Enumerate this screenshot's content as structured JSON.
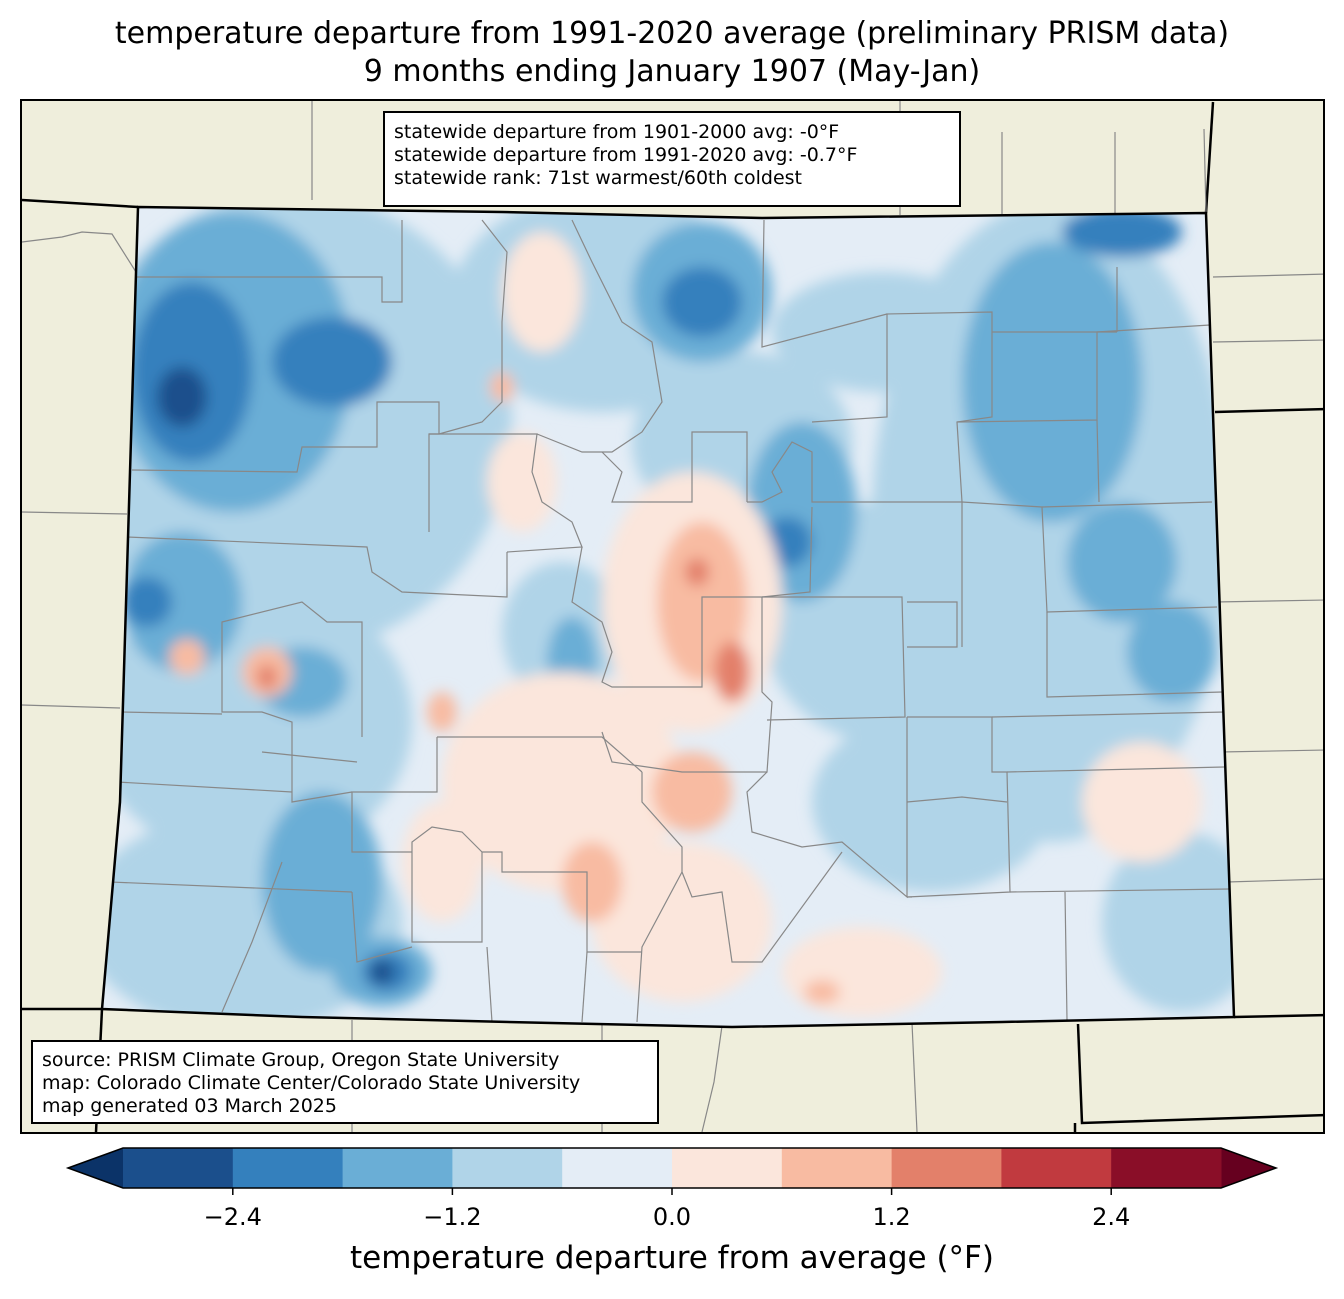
{
  "title": {
    "line1": "temperature departure from 1991-2020 average (preliminary PRISM data)",
    "line2": "9 months ending January 1907 (May-Jan)"
  },
  "stats": {
    "line1": "statewide departure from 1901-2000 avg: -0°F",
    "line2": "statewide departure from 1991-2020 avg: -0.7°F",
    "line3": "statewide rank: 71st warmest/60th coldest"
  },
  "source": {
    "line1": "source: PRISM Climate Group, Oregon State University",
    "line2": "map: Colorado Climate Center/Colorado State University",
    "line3": "map generated 03 March 2025"
  },
  "colorbar": {
    "label": "temperature departure from average (°F)",
    "ticks": [
      "−2.4",
      "−1.2",
      "0.0",
      "1.2",
      "2.4"
    ],
    "tick_values": [
      -2.4,
      -1.2,
      0.0,
      1.2,
      2.4
    ],
    "range": [
      -3.0,
      3.0
    ],
    "step": 0.6,
    "extend": "both",
    "colors": [
      "#1b4f8c",
      "#3480bd",
      "#6aaed6",
      "#b0d4e8",
      "#e4edf6",
      "#fbe6dc",
      "#f8bba2",
      "#e3806a",
      "#c13a3f",
      "#8a0e28"
    ],
    "under_color": "#0b3368",
    "over_color": "#66001f"
  },
  "map": {
    "background_color": "#efeedc",
    "neutral_color": "#e4edf6",
    "state_border_color": "#000000",
    "county_line_color": "#888888"
  }
}
